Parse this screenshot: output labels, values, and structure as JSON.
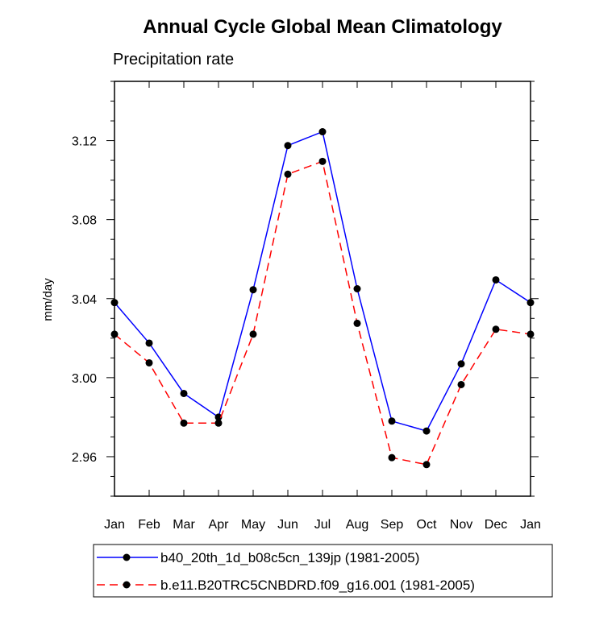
{
  "chart_data": {
    "type": "line",
    "title": "Annual Cycle Global Mean Climatology",
    "subtitle": "Precipitation rate",
    "xlabel": "",
    "ylabel": "mm/day",
    "categories": [
      "Jan",
      "Feb",
      "Mar",
      "Apr",
      "May",
      "Jun",
      "Jul",
      "Aug",
      "Sep",
      "Oct",
      "Nov",
      "Dec",
      "Jan"
    ],
    "ylim": [
      2.94,
      3.15
    ],
    "yticks": [
      "2.96",
      "3.00",
      "3.04",
      "3.08",
      "3.12"
    ],
    "series": [
      {
        "name": "b40_20th_1d_b08c5cn_139jp (1981-2005)",
        "color": "#0000ff",
        "dash": "solid",
        "values": [
          3.038,
          3.0175,
          2.992,
          2.98,
          3.0445,
          3.1175,
          3.1245,
          3.045,
          2.978,
          2.973,
          3.007,
          3.0495,
          3.038
        ]
      },
      {
        "name": "b.e11.B20TRC5CNBDRD.f09_g16.001 (1981-2005)",
        "color": "#ff0000",
        "dash": "dashed",
        "values": [
          3.022,
          3.0075,
          2.977,
          2.977,
          3.022,
          3.103,
          3.1095,
          3.0275,
          2.9595,
          2.956,
          2.9965,
          3.0245,
          3.022
        ]
      }
    ],
    "legend": {
      "placement": "bottom"
    }
  }
}
